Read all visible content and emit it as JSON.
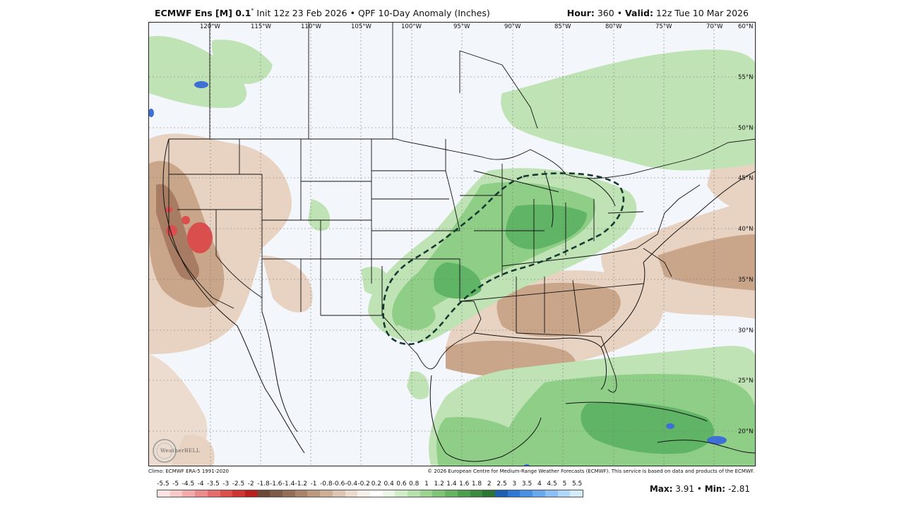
{
  "header": {
    "model": "ECMWF Ens [M] 0.1",
    "model_degree": "°",
    "init": "Init 12z 23 Feb 2026",
    "bullet": "•",
    "product": "QPF 10-Day Anomaly (Inches)",
    "hour_label": "Hour:",
    "hour_value": "360",
    "valid_label": "Valid:",
    "valid_value": "12z Tue 10 Mar 2026"
  },
  "map": {
    "longitude_labels": [
      "120°W",
      "115°W",
      "110°W",
      "105°W",
      "100°W",
      "95°W",
      "90°W",
      "85°W",
      "80°W",
      "75°W",
      "70°W",
      "60°N"
    ],
    "latitude_labels": [
      "55°N",
      "50°N",
      "45°N",
      "40°N",
      "35°N",
      "30°N",
      "25°N",
      "20°N"
    ],
    "colors": {
      "land_background": "#f3f6fb",
      "wet_light": "#bfe3b4",
      "wet_medium": "#8fce86",
      "wet_strong": "#5fb565",
      "wet_heavy": "#3a8d47",
      "wet_extreme": "#3d6fd6",
      "dry_light": "#e8d3c2",
      "dry_medium": "#c9a58a",
      "dry_strong": "#a87c62",
      "dry_extreme": "#d63b3b",
      "highlight_contour": "#153a30"
    }
  },
  "footer": {
    "climo": "Climo: ECMWF ERA-5 1991-2020",
    "copyright": "© 2026 European Centre for Medium-Range Weather Forecasts (ECMWF). This service is based on data and products of the ECMWF.",
    "logo_text": "WeatherBELL"
  },
  "scale": {
    "labels": [
      "-5.5",
      "-5",
      "-4.5",
      "-4",
      "-3.5",
      "-3",
      "-2.5",
      "-2",
      "-1.8",
      "-1.6",
      "-1.4",
      "-1.2",
      "-1",
      "-0.8",
      "-0.6",
      "-0.4",
      "-0.2",
      "0.2",
      "0.4",
      "0.6",
      "0.8",
      "1",
      "1.2",
      "1.4",
      "1.6",
      "1.8",
      "2",
      "2.5",
      "3",
      "3.5",
      "4",
      "4.5",
      "5",
      "5.5"
    ],
    "colors": [
      "#fbe3e3",
      "#f7c9c9",
      "#f2aaaa",
      "#ec8b8b",
      "#e46c6c",
      "#db4e4e",
      "#cf3434",
      "#b82020",
      "#6b4a3a",
      "#7e5a48",
      "#946d58",
      "#a8826b",
      "#bb9880",
      "#cdae97",
      "#dcc5b2",
      "#ecdccf",
      "#f7f0ea",
      "#ffffff",
      "#eaf6e6",
      "#d2ecca",
      "#b8e0ad",
      "#9cd390",
      "#80c575",
      "#66b45f",
      "#4e9f4d",
      "#3c8a40",
      "#2d7534",
      "#1f5fb0",
      "#2f78d4",
      "#4a90e2",
      "#6aa8ee",
      "#8cc0f4",
      "#b0d6f8",
      "#d4ebfc"
    ]
  },
  "stats": {
    "max_label": "Max:",
    "max_value": "3.91",
    "min_label": "Min:",
    "min_value": "-2.81",
    "bullet": "•"
  }
}
